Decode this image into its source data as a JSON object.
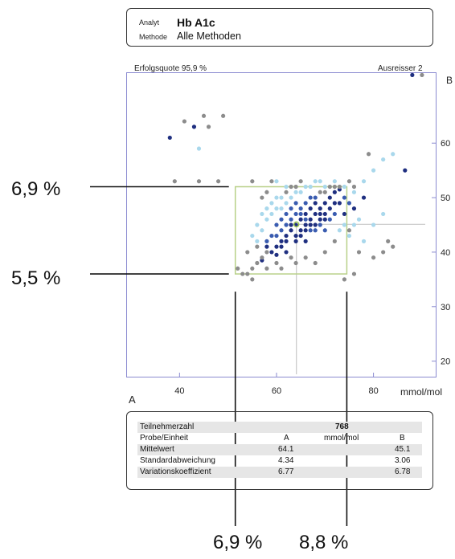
{
  "header": {
    "analyt_label": "Analyt",
    "analyt_value": "Hb A1c",
    "methode_label": "Methode",
    "methode_value": "Alle Methoden"
  },
  "plot": {
    "success_rate": "Erfolgsquote 95,9 %",
    "outliers": "Ausreisser 2",
    "axis_b_label": "B",
    "axis_a_label": "A",
    "x_unit": "mmol/mol"
  },
  "annotations": {
    "y_upper": "6,9 %",
    "y_lower": "5,5 %",
    "x_left": "6,9 %",
    "x_right": "8,8 %"
  },
  "table": {
    "participants_label": "Teilnehmerzahl",
    "participants_value": "768",
    "probe_label": "Probe/Einheit",
    "col_a": "A",
    "unit": "mmol/mol",
    "col_b": "B",
    "rows": [
      {
        "label": "Mittelwert",
        "a": "64.1",
        "b": "45.1"
      },
      {
        "label": "Standardabweichung",
        "a": "4.34",
        "b": "3.06"
      },
      {
        "label": "Variationskoeffizient",
        "a": "6.77",
        "b": "6.78"
      }
    ]
  },
  "colors": {
    "dark": "#1f2f80",
    "mid": "#3a5cb0",
    "light": "#a9d8ec",
    "grey": "#8c8c8c",
    "target_box": "#b8d088"
  },
  "chart_data": {
    "type": "scatter",
    "xlabel": "mmol/mol",
    "ylabel": "",
    "xlim": [
      29,
      93
    ],
    "ylim": [
      17,
      73
    ],
    "x_ticks": [
      40,
      60,
      80
    ],
    "y_ticks": [
      20,
      30,
      40,
      50,
      60
    ],
    "grid": false,
    "target_box": {
      "x": [
        51.5,
        74.5
      ],
      "y": [
        36,
        52
      ]
    },
    "mean": {
      "x": 64.1,
      "y": 45.1
    },
    "series": [
      {
        "name": "",
        "color": "#1f2f80",
        "points": [
          [
            38,
            61
          ],
          [
            43,
            63
          ],
          [
            86.5,
            55
          ],
          [
            88,
            72.5
          ],
          [
            57,
            38.5
          ],
          [
            60,
            39.5
          ],
          [
            62,
            42
          ],
          [
            63,
            44
          ],
          [
            64,
            45
          ],
          [
            65,
            46
          ],
          [
            66,
            47
          ],
          [
            67,
            48
          ],
          [
            68,
            49
          ],
          [
            69,
            48
          ],
          [
            70,
            49
          ],
          [
            71,
            50
          ],
          [
            72,
            51
          ],
          [
            73,
            51.5
          ],
          [
            61,
            41
          ],
          [
            62,
            43
          ],
          [
            63,
            45
          ],
          [
            64,
            43
          ],
          [
            65,
            44
          ],
          [
            66,
            45
          ],
          [
            67,
            46
          ],
          [
            68,
            47
          ],
          [
            69,
            46
          ],
          [
            70,
            47
          ],
          [
            71,
            48
          ],
          [
            60,
            41
          ],
          [
            61,
            42
          ],
          [
            64,
            42
          ],
          [
            65,
            43
          ],
          [
            66,
            44
          ],
          [
            67,
            45
          ],
          [
            68,
            45
          ],
          [
            69,
            47
          ],
          [
            70,
            46
          ],
          [
            72,
            49
          ],
          [
            73,
            49
          ],
          [
            74,
            47
          ],
          [
            76,
            48
          ],
          [
            78,
            50
          ],
          [
            59,
            40
          ],
          [
            62,
            40
          ],
          [
            66,
            42
          ],
          [
            58,
            41
          ]
        ]
      },
      {
        "name": "",
        "color": "#3a5cb0",
        "points": [
          [
            60,
            43
          ],
          [
            61,
            44
          ],
          [
            62,
            45
          ],
          [
            63,
            46
          ],
          [
            64,
            47
          ],
          [
            65,
            48
          ],
          [
            66,
            49
          ],
          [
            67,
            50
          ],
          [
            68,
            50
          ],
          [
            62,
            47
          ],
          [
            63,
            48
          ],
          [
            64,
            49
          ],
          [
            65,
            47
          ],
          [
            66,
            46
          ],
          [
            67,
            44
          ],
          [
            68,
            44
          ],
          [
            69,
            45
          ],
          [
            70,
            44
          ],
          [
            71,
            46
          ],
          [
            72,
            47
          ],
          [
            58,
            42
          ],
          [
            59,
            43
          ],
          [
            60,
            45
          ],
          [
            61,
            46
          ],
          [
            74,
            50
          ],
          [
            75,
            49
          ]
        ]
      },
      {
        "name": "",
        "color": "#a9d8ec",
        "points": [
          [
            44,
            59
          ],
          [
            57,
            47
          ],
          [
            58,
            48
          ],
          [
            59,
            49
          ],
          [
            60,
            50
          ],
          [
            61,
            50
          ],
          [
            56,
            45
          ],
          [
            57,
            44
          ],
          [
            58,
            46
          ],
          [
            59,
            47
          ],
          [
            60,
            48
          ],
          [
            61,
            48
          ],
          [
            62,
            49
          ],
          [
            63,
            50
          ],
          [
            64,
            51
          ],
          [
            65,
            51
          ],
          [
            66,
            52
          ],
          [
            67,
            52
          ],
          [
            68,
            53
          ],
          [
            69,
            53
          ],
          [
            70,
            52
          ],
          [
            72,
            53
          ],
          [
            74,
            52
          ],
          [
            76,
            51
          ],
          [
            78,
            53
          ],
          [
            80,
            55
          ],
          [
            82,
            57
          ],
          [
            84,
            58
          ],
          [
            78,
            42
          ],
          [
            80,
            45
          ],
          [
            82,
            47
          ],
          [
            76,
            45
          ],
          [
            77,
            46
          ],
          [
            73,
            44
          ],
          [
            74,
            45
          ],
          [
            75,
            43
          ],
          [
            60,
            53
          ],
          [
            62,
            52
          ],
          [
            55,
            43
          ],
          [
            56,
            42
          ]
        ]
      },
      {
        "name": "",
        "color": "#8c8c8c",
        "points": [
          [
            45,
            65
          ],
          [
            46,
            63
          ],
          [
            41,
            64
          ],
          [
            49,
            65
          ],
          [
            39,
            53
          ],
          [
            44,
            53
          ],
          [
            48,
            53
          ],
          [
            55,
            53
          ],
          [
            59,
            53
          ],
          [
            65,
            53
          ],
          [
            57,
            50
          ],
          [
            58,
            51
          ],
          [
            54,
            36
          ],
          [
            55,
            37
          ],
          [
            56,
            38
          ],
          [
            57,
            39
          ],
          [
            58,
            40
          ],
          [
            55,
            35
          ],
          [
            53,
            36
          ],
          [
            52,
            37
          ],
          [
            54,
            40
          ],
          [
            56,
            41
          ],
          [
            58,
            37
          ],
          [
            63,
            39
          ],
          [
            68,
            38
          ],
          [
            70,
            40
          ],
          [
            72,
            42
          ],
          [
            75,
            44
          ],
          [
            77,
            40
          ],
          [
            80,
            39
          ],
          [
            82,
            40
          ],
          [
            83,
            42
          ],
          [
            84,
            41
          ],
          [
            76,
            36
          ],
          [
            74,
            35
          ],
          [
            79,
            58
          ],
          [
            69,
            51
          ],
          [
            70,
            51
          ],
          [
            71,
            52
          ],
          [
            72,
            52
          ],
          [
            73,
            52
          ],
          [
            62,
            51
          ],
          [
            63,
            52
          ],
          [
            64,
            52
          ],
          [
            75,
            53
          ],
          [
            76,
            52
          ],
          [
            60,
            38
          ],
          [
            61,
            37
          ],
          [
            66,
            39
          ],
          [
            64,
            38
          ],
          [
            90,
            72.5
          ]
        ]
      }
    ]
  }
}
